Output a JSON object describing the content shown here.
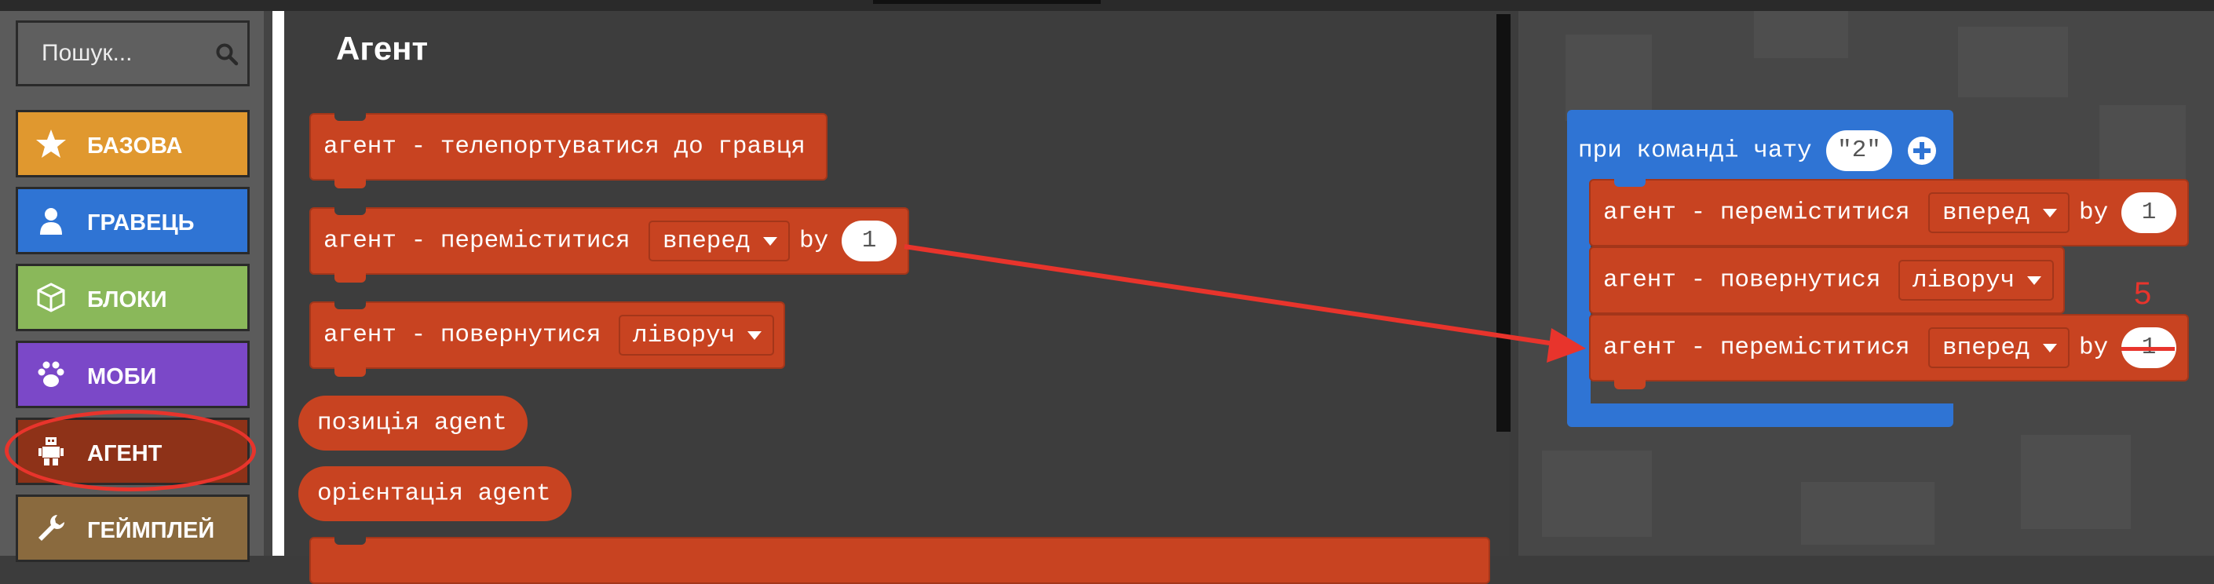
{
  "search": {
    "placeholder": "Пошук...",
    "icon": "search-icon"
  },
  "categories": [
    {
      "label": "БАЗОВА",
      "icon": "star-icon",
      "color": "#e0982f"
    },
    {
      "label": "ГРАВЕЦЬ",
      "icon": "person-icon",
      "color": "#2f74d4"
    },
    {
      "label": "БЛОКИ",
      "icon": "cube-icon",
      "color": "#8ab85a"
    },
    {
      "label": "МОБИ",
      "icon": "paw-icon",
      "color": "#7b48c8"
    },
    {
      "label": "АГЕНТ",
      "icon": "agent-robot-icon",
      "color": "#8e3218",
      "selected": true
    },
    {
      "label": "ГЕЙМПЛЕЙ",
      "icon": "wrench-icon",
      "color": "#8a6a3e"
    }
  ],
  "flyout": {
    "title": "Агент",
    "blocks": {
      "teleport": {
        "text": "агент - телепортуватися до гравця"
      },
      "move": {
        "text": "агент - переміститися",
        "direction": "вперед",
        "by": "by",
        "amount": "1"
      },
      "turn": {
        "text": "агент - повернутися",
        "direction": "ліворуч"
      },
      "position": {
        "text": "позиція agent"
      },
      "orientation": {
        "text": "орієнтація agent"
      }
    }
  },
  "workspace": {
    "event": {
      "text": "при команді чату",
      "command": "\"2\"",
      "add_icon": "plus-circle-icon"
    },
    "stack": [
      {
        "text": "агент - переміститися",
        "direction": "вперед",
        "by": "by",
        "amount": "1"
      },
      {
        "text": "агент - повернутися",
        "direction": "ліворуч"
      },
      {
        "text": "агент - переміститися",
        "direction": "вперед",
        "by": "by",
        "amount": "1"
      }
    ],
    "annotation": {
      "text": "5",
      "color": "#e8342c"
    }
  },
  "colors": {
    "agent_block": "#c84321",
    "event_block": "#2f74d4",
    "annotation": "#e8342c"
  }
}
